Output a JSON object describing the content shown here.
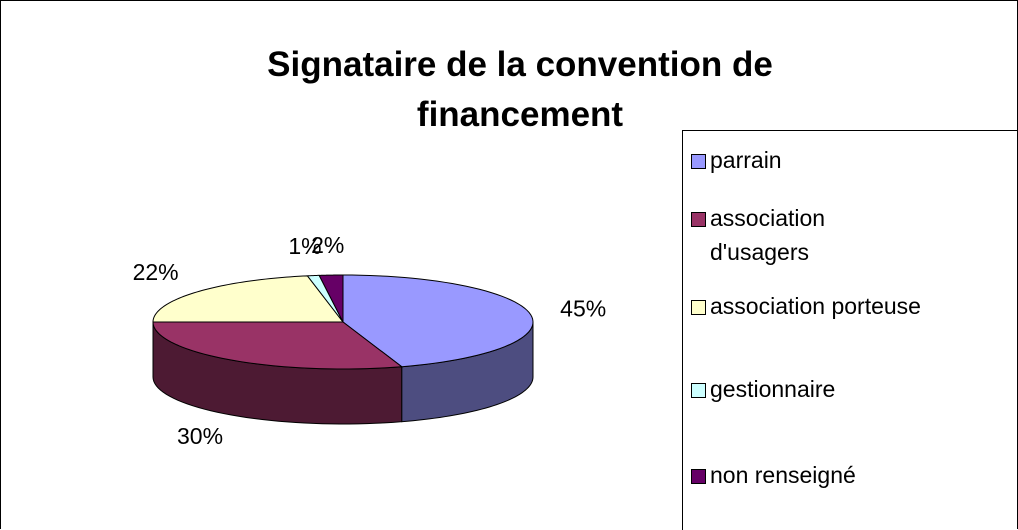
{
  "chart_data": {
    "type": "pie",
    "title": "Signataire de la convention de financement",
    "categories": [
      "parrain",
      "association d'usagers",
      "association porteuse",
      "gestionnaire",
      "non renseigné"
    ],
    "values": [
      45,
      30,
      22,
      1,
      2
    ],
    "value_labels": [
      "45%",
      "30%",
      "22%",
      "1%",
      "2%"
    ],
    "colors": [
      "#9999ff",
      "#993366",
      "#ffffcc",
      "#ccffff",
      "#660066"
    ],
    "legend": "right"
  }
}
